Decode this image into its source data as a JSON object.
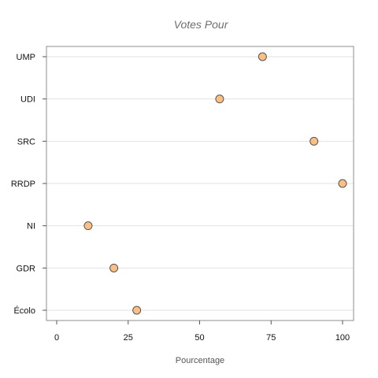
{
  "chart_data": {
    "type": "scatter",
    "title": "Votes Pour",
    "xlabel": "Pourcentage",
    "ylabel": "",
    "xlim": [
      -3,
      104
    ],
    "xticks": [
      0,
      25,
      50,
      75,
      100
    ],
    "xtick_labels": [
      "0",
      "25",
      "50",
      "75",
      "100"
    ],
    "categories": [
      "UMP",
      "UDI",
      "SRC",
      "RRDP",
      "NI",
      "GDR",
      "Écolo"
    ],
    "values": [
      72,
      57,
      90,
      100,
      11,
      20,
      28
    ],
    "grid": "horizontal",
    "colors": {
      "point_fill": "#fbbf85",
      "point_stroke": "#555555",
      "grid": "#e2e2e2",
      "frame": "#8c8c8c"
    }
  }
}
